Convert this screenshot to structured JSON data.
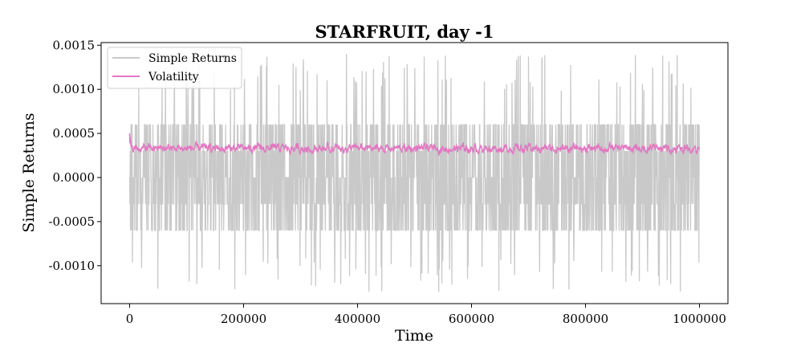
{
  "chart_data": {
    "type": "line",
    "title": "STARFRUIT, day -1",
    "xlabel": "Time",
    "ylabel": "Simple Returns",
    "xlim": [
      -50000,
      1050000
    ],
    "ylim": [
      -0.00143,
      0.00153
    ],
    "x_ticks": [
      0,
      200000,
      400000,
      600000,
      800000,
      1000000
    ],
    "x_tick_labels": [
      "0",
      "200000",
      "400000",
      "600000",
      "800000",
      "1000000"
    ],
    "y_ticks": [
      -0.001,
      -0.0005,
      0.0,
      0.0005,
      0.001,
      0.0015
    ],
    "y_tick_labels": [
      "-0.0010",
      "-0.0005",
      "0.0000",
      "0.0005",
      "0.0010",
      "0.0015"
    ],
    "grid": false,
    "legend_position": "top-left",
    "series": [
      {
        "name": "Simple Returns",
        "color": "#c9c9c9",
        "x_range": [
          0,
          1000000
        ],
        "description_values": {
          "typical_band": [
            -0.0006,
            0.0006
          ],
          "extreme_high": 0.0014,
          "extreme_low": -0.0013
        }
      },
      {
        "name": "Volatility",
        "color": "#e377c2",
        "x_range": [
          0,
          1000000
        ],
        "description_values": {
          "typical_band": [
            0.0002,
            0.0005
          ],
          "mean": 0.00033
        }
      }
    ]
  }
}
